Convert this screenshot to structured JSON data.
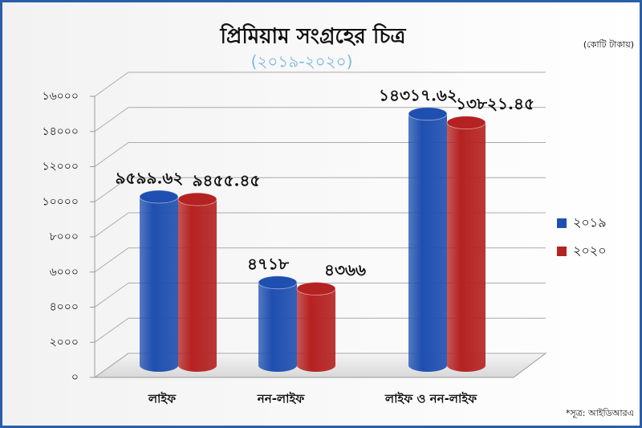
{
  "chart_data": {
    "type": "bar3d",
    "title": "প্রিমিয়াম সংগ্রহের চিত্র",
    "subtitle": "(২০১৯-২০২০)",
    "unit_note": "(কোটি টাকায়)",
    "source_note": "*সূত্র: আইডিআরএ",
    "categories": [
      "লাইফ",
      "নন-লাইফ",
      "লাইফ ও নন-লাইফ"
    ],
    "series": [
      {
        "name": "২০১৯",
        "color": "#1f4fb0",
        "values": [
          9599.62,
          4718,
          14317.62
        ],
        "value_labels": [
          "৯৫৯৯.৬২",
          "৪৭১৮",
          "১৪৩১৭.৬২"
        ]
      },
      {
        "name": "২০২০",
        "color": "#b52222",
        "values": [
          9455.45,
          4366,
          13821.45
        ],
        "value_labels": [
          "৯৪৫৫.৪৫",
          "৪৩৬৬",
          "১৩৮২১.৪৫"
        ]
      }
    ],
    "ylim": [
      0,
      16000
    ],
    "yticks": [
      {
        "value": 0,
        "label": "০"
      },
      {
        "value": 2000,
        "label": "২০০০"
      },
      {
        "value": 4000,
        "label": "৪০০০"
      },
      {
        "value": 6000,
        "label": "৬০০০"
      },
      {
        "value": 8000,
        "label": "৮০০০"
      },
      {
        "value": 10000,
        "label": "১০০০০"
      },
      {
        "value": 12000,
        "label": "১২০০০"
      },
      {
        "value": 14000,
        "label": "১৪০০০"
      },
      {
        "value": 16000,
        "label": "১৬০০০"
      }
    ],
    "grid": true,
    "legend": "right"
  }
}
